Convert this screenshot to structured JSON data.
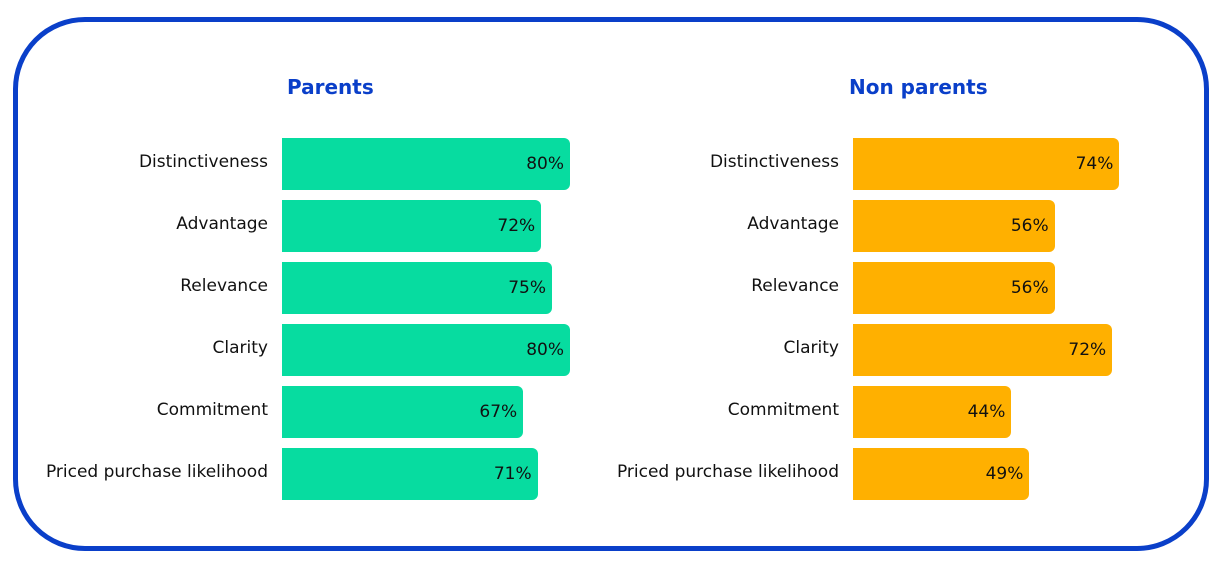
{
  "chart_data": [
    {
      "type": "bar",
      "orientation": "horizontal",
      "title": "Parents",
      "categories": [
        "Distinctiveness",
        "Advantage",
        "Relevance",
        "Clarity",
        "Commitment",
        "Priced purchase likelihood"
      ],
      "values": [
        80,
        72,
        75,
        80,
        67,
        71
      ],
      "value_labels": [
        "80%",
        "72%",
        "75%",
        "80%",
        "67%",
        "71%"
      ],
      "xlim": [
        0,
        100
      ],
      "grid": false,
      "color": "#07dca0"
    },
    {
      "type": "bar",
      "orientation": "horizontal",
      "title": "Non parents",
      "categories": [
        "Distinctiveness",
        "Advantage",
        "Relevance",
        "Clarity",
        "Commitment",
        "Priced purchase likelihood"
      ],
      "values": [
        74,
        56,
        56,
        72,
        44,
        49
      ],
      "value_labels": [
        "74%",
        "56%",
        "56%",
        "72%",
        "44%",
        "49%"
      ],
      "xlim": [
        0,
        100
      ],
      "grid": false,
      "color": "#ffb000"
    }
  ]
}
